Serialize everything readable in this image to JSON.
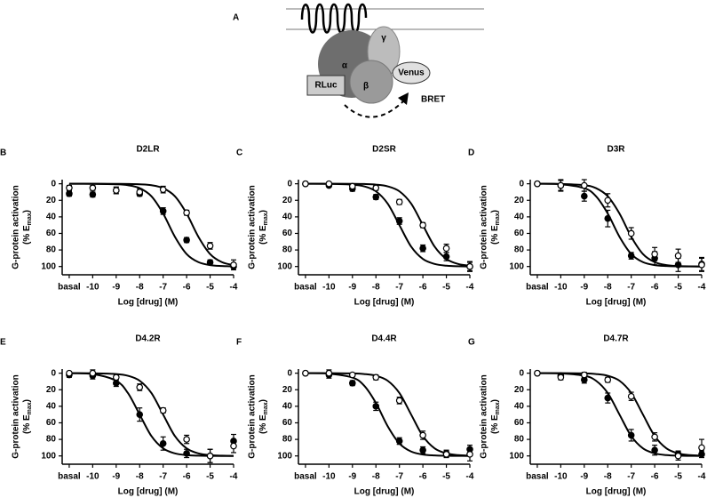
{
  "diagram": {
    "label": "A",
    "alpha": "α",
    "beta": "β",
    "gamma": "γ",
    "rluc": "RLuc",
    "venus": "Venus",
    "bret": "BRET"
  },
  "chart_data": [
    {
      "type": "scatter",
      "panel": "B",
      "title": "D2LR",
      "xlabel": "Log [drug] (M)",
      "ylabel": "G-protein activation",
      "ylabel_units": [
        "(% E",
        "max",
        ")"
      ],
      "xlim": [
        -11.3,
        -4
      ],
      "xticks": [
        {
          "value": -11,
          "label": "basal"
        },
        -10,
        -9,
        -8,
        -7,
        -6,
        -5,
        -4
      ],
      "ylim": [
        110,
        -5
      ],
      "yticks": [
        0,
        20,
        40,
        60,
        80,
        100
      ],
      "series": [
        {
          "marker": "filled",
          "color": "#000",
          "x": [
            -11,
            -10,
            -9,
            -8,
            -7,
            -6,
            -5,
            -4
          ],
          "values": [
            12,
            13,
            8,
            12,
            33,
            68,
            95,
            100
          ],
          "errors": [
            3,
            3,
            4,
            3,
            4,
            3,
            3,
            4
          ],
          "curve": {
            "x": [
              -11,
              -10,
              -9,
              -8.5,
              -8,
              -7.5,
              -7,
              -6.5,
              -6,
              -5.5,
              -5,
              -4.5,
              -4
            ],
            "values": [
              0,
              0.1,
              0.6,
              1.7,
              5.3,
              15.1,
              36,
              64,
              84.9,
              94.7,
              98.3,
              99.4,
              99.8
            ]
          }
        },
        {
          "marker": "open",
          "color": "#000",
          "x": [
            -11,
            -10,
            -9,
            -8,
            -7,
            -6,
            -5,
            -4
          ],
          "values": [
            5,
            5,
            8,
            10,
            7,
            35,
            75,
            98
          ],
          "errors": [
            3,
            3,
            4,
            4,
            4,
            3,
            4,
            6
          ],
          "curve": {
            "x": [
              -11,
              -10,
              -9,
              -8.5,
              -8,
              -7.5,
              -7,
              -6.5,
              -6,
              -5.5,
              -5,
              -4.5,
              -4
            ],
            "values": [
              0,
              0,
              0.1,
              0.2,
              0.6,
              1.7,
              5.3,
              15.1,
              36,
              64,
              84.9,
              94.7,
              98.3
            ]
          }
        }
      ]
    },
    {
      "type": "scatter",
      "panel": "C",
      "title": "D2SR",
      "xlabel": "Log [drug] (M)",
      "ylabel": "G-protein activation",
      "ylabel_units": [
        "(% E",
        "max",
        ")"
      ],
      "xlim": [
        -11.3,
        -4
      ],
      "xticks": [
        {
          "value": -11,
          "label": "basal"
        },
        -10,
        -9,
        -8,
        -7,
        -6,
        -5,
        -4
      ],
      "ylim": [
        110,
        -5
      ],
      "yticks": [
        0,
        20,
        40,
        60,
        80,
        100
      ],
      "series": [
        {
          "marker": "filled",
          "color": "#000",
          "x": [
            -11,
            -10,
            -9,
            -8,
            -7,
            -6,
            -5,
            -4
          ],
          "values": [
            0,
            2,
            6,
            16,
            45,
            78,
            88,
            100
          ],
          "errors": [
            2,
            2,
            3,
            3,
            4,
            4,
            5,
            5
          ],
          "curve": {
            "x": [
              -11,
              -10,
              -9,
              -8.5,
              -8,
              -7.5,
              -7,
              -6.5,
              -6,
              -5.5,
              -5,
              -4.5,
              -4
            ],
            "values": [
              0,
              0.1,
              1,
              3.1,
              9.1,
              24,
              50,
              76,
              90.9,
              96.9,
              99,
              99.7,
              99.9
            ]
          }
        },
        {
          "marker": "open",
          "color": "#000",
          "x": [
            -11,
            -10,
            -9,
            -8,
            -7,
            -6,
            -5,
            -4
          ],
          "values": [
            0,
            0,
            3,
            5,
            22,
            50,
            78,
            100
          ],
          "errors": [
            2,
            2,
            2,
            3,
            3,
            3,
            5,
            6
          ],
          "curve": {
            "x": [
              -11,
              -10,
              -9,
              -8.5,
              -8,
              -7.5,
              -7,
              -6.5,
              -6,
              -5.5,
              -5,
              -4.5,
              -4
            ],
            "values": [
              0,
              0,
              0.1,
              0.3,
              1,
              3.1,
              9.1,
              24,
              50,
              76,
              90.9,
              96.9,
              99
            ]
          }
        }
      ]
    },
    {
      "type": "scatter",
      "panel": "D",
      "title": "D3R",
      "xlabel": "Log [drug] (M)",
      "ylabel": "G-protein activation",
      "ylabel_units": [
        "(% E",
        "max",
        ")"
      ],
      "xlim": [
        -11.3,
        -4
      ],
      "xticks": [
        {
          "value": -11,
          "label": "basal"
        },
        -10,
        -9,
        -8,
        -7,
        -6,
        -5,
        -4
      ],
      "ylim": [
        110,
        -5
      ],
      "yticks": [
        0,
        20,
        40,
        60,
        80,
        100
      ],
      "series": [
        {
          "marker": "filled",
          "color": "#000",
          "x": [
            -11,
            -10,
            -9,
            -8,
            -7,
            -6,
            -5,
            -4
          ],
          "values": [
            0,
            2,
            15,
            42,
            87,
            90,
            98,
            97
          ],
          "errors": [
            2,
            6,
            6,
            10,
            4,
            8,
            8,
            8
          ],
          "curve": {
            "x": [
              -11,
              -10,
              -9,
              -8.5,
              -8,
              -7.5,
              -7,
              -6.5,
              -6,
              -5.5,
              -5,
              -4.5,
              -4
            ],
            "values": [
              0,
              0.6,
              5.3,
              15.1,
              36,
              64,
              84.9,
              94.7,
              98.3,
              99.4,
              99.8,
              99.9,
              100
            ]
          }
        },
        {
          "marker": "open",
          "color": "#000",
          "x": [
            -11,
            -10,
            -9,
            -8,
            -7,
            -6,
            -5,
            -4
          ],
          "values": [
            0,
            2,
            2,
            20,
            60,
            85,
            87,
            98
          ],
          "errors": [
            2,
            7,
            7,
            8,
            7,
            8,
            8,
            8
          ],
          "curve": {
            "x": [
              -11,
              -10,
              -9,
              -8.5,
              -8,
              -7.5,
              -7,
              -6.5,
              -6,
              -5.5,
              -5,
              -4.5,
              -4
            ],
            "values": [
              0,
              0.2,
              1.7,
              5.3,
              15.1,
              36,
              64,
              84.9,
              94.7,
              98.3,
              99.4,
              99.8,
              99.9
            ]
          }
        }
      ]
    },
    {
      "type": "scatter",
      "panel": "E",
      "title": "D4.2R",
      "xlabel": "Log [drug] (M)",
      "ylabel": "G-protein activation",
      "ylabel_units": [
        "(% E",
        "max",
        ")"
      ],
      "xlim": [
        -11.3,
        -4
      ],
      "xticks": [
        {
          "value": -11,
          "label": "basal"
        },
        -10,
        -9,
        -8,
        -7,
        -6,
        -5,
        -4
      ],
      "ylim": [
        110,
        -5
      ],
      "yticks": [
        0,
        20,
        40,
        60,
        80,
        100
      ],
      "series": [
        {
          "marker": "filled",
          "color": "#000",
          "x": [
            -11,
            -10,
            -9,
            -8,
            -7,
            -6,
            -5,
            -4
          ],
          "values": [
            2,
            3,
            12,
            50,
            85,
            97,
            100,
            82
          ],
          "errors": [
            3,
            4,
            4,
            8,
            8,
            5,
            8,
            8
          ],
          "curve": {
            "x": [
              -11,
              -10,
              -9,
              -8.5,
              -8,
              -7.5,
              -7,
              -6.5,
              -6,
              -5.5,
              -5,
              -4.5,
              -4
            ],
            "values": [
              0.1,
              1,
              9.1,
              24,
              50,
              76,
              90.9,
              96.9,
              99,
              99.7,
              99.9,
              100,
              100
            ]
          }
        },
        {
          "marker": "open",
          "color": "#000",
          "x": [
            -11,
            -10,
            -9,
            -8,
            -7,
            -6,
            -5,
            -4
          ],
          "values": [
            0,
            0,
            5,
            17,
            45,
            80,
            100,
            88
          ],
          "errors": [
            2,
            4,
            3,
            4,
            3,
            5,
            8,
            8
          ],
          "curve": {
            "x": [
              -11,
              -10,
              -9,
              -8.5,
              -8,
              -7.5,
              -7,
              -6.5,
              -6,
              -5.5,
              -5,
              -4.5,
              -4
            ],
            "values": [
              0,
              0.1,
              1,
              3.1,
              9.1,
              24,
              50,
              76,
              90.9,
              96.9,
              99,
              99.7,
              99.9
            ]
          }
        }
      ]
    },
    {
      "type": "scatter",
      "panel": "F",
      "title": "D4.4R",
      "xlabel": "Log [drug] (M)",
      "ylabel": "G-protein activation",
      "ylabel_units": [
        "(% E",
        "max",
        ")"
      ],
      "xlim": [
        -11.3,
        -4
      ],
      "xticks": [
        {
          "value": -11,
          "label": "basal"
        },
        -10,
        -9,
        -8,
        -7,
        -6,
        -5,
        -4
      ],
      "ylim": [
        110,
        -5
      ],
      "yticks": [
        0,
        20,
        40,
        60,
        80,
        100
      ],
      "series": [
        {
          "marker": "filled",
          "color": "#000",
          "x": [
            -11,
            -10,
            -9,
            -8,
            -7,
            -6,
            -5,
            -4
          ],
          "values": [
            0,
            2,
            12,
            40,
            82,
            93,
            97,
            92
          ],
          "errors": [
            2,
            4,
            3,
            5,
            4,
            4,
            4,
            5
          ],
          "curve": {
            "x": [
              -11,
              -10,
              -9,
              -8.5,
              -8,
              -7.5,
              -7,
              -6.5,
              -6,
              -5.5,
              -5,
              -4.5,
              -4
            ],
            "values": [
              0,
              0.6,
              5.3,
              15.1,
              36,
              64,
              84.9,
              94.7,
              98.3,
              99.4,
              99.8,
              99.9,
              100
            ]
          }
        },
        {
          "marker": "open",
          "color": "#000",
          "x": [
            -11,
            -10,
            -9,
            -8,
            -7,
            -6,
            -5,
            -4
          ],
          "values": [
            0,
            0,
            2,
            5,
            33,
            75,
            98,
            98
          ],
          "errors": [
            2,
            4,
            2,
            3,
            4,
            5,
            4,
            8
          ],
          "curve": {
            "x": [
              -11,
              -10,
              -9,
              -8.5,
              -8,
              -7.5,
              -7,
              -6.5,
              -6,
              -5.5,
              -5,
              -4.5,
              -4
            ],
            "values": [
              0,
              0,
              0.3,
              1,
              3.1,
              9.1,
              24,
              50,
              76,
              90.9,
              96.9,
              99,
              99.7
            ]
          }
        }
      ]
    },
    {
      "type": "scatter",
      "panel": "G",
      "title": "D4.7R",
      "xlabel": "Log [drug] (M)",
      "ylabel": "G-protein activation",
      "ylabel_units": [
        "(% E",
        "max",
        ")"
      ],
      "xlim": [
        -11.3,
        -4
      ],
      "xticks": [
        {
          "value": -11,
          "label": "basal"
        },
        -10,
        -9,
        -8,
        -7,
        -6,
        -5,
        -4
      ],
      "ylim": [
        110,
        -5
      ],
      "yticks": [
        0,
        20,
        40,
        60,
        80,
        100
      ],
      "series": [
        {
          "marker": "filled",
          "color": "#000",
          "x": [
            -11,
            -10,
            -9,
            -8,
            -7,
            -6,
            -5,
            -4
          ],
          "values": [
            0,
            3,
            8,
            30,
            75,
            93,
            98,
            98
          ],
          "errors": [
            2,
            3,
            4,
            6,
            7,
            6,
            4,
            4
          ],
          "curve": {
            "x": [
              -11,
              -10,
              -9,
              -8.5,
              -8,
              -7.5,
              -7,
              -6.5,
              -6,
              -5.5,
              -5,
              -4.5,
              -4
            ],
            "values": [
              0,
              0.3,
              3.1,
              9.1,
              24,
              50,
              76,
              90.9,
              96.9,
              99,
              99.7,
              99.9,
              100
            ]
          }
        },
        {
          "marker": "open",
          "color": "#000",
          "x": [
            -11,
            -10,
            -9,
            -8,
            -7,
            -6,
            -5,
            -4
          ],
          "values": [
            0,
            5,
            2,
            8,
            28,
            77,
            100,
            90
          ],
          "errors": [
            2,
            3,
            3,
            3,
            5,
            5,
            5,
            10
          ],
          "curve": {
            "x": [
              -11,
              -10,
              -9,
              -8.5,
              -8,
              -7.5,
              -7,
              -6.5,
              -6,
              -5.5,
              -5,
              -4.5,
              -4
            ],
            "values": [
              0,
              0,
              0.3,
              1,
              3.1,
              9.1,
              24,
              50,
              76,
              90.9,
              96.9,
              99,
              99.7
            ]
          }
        }
      ]
    }
  ]
}
